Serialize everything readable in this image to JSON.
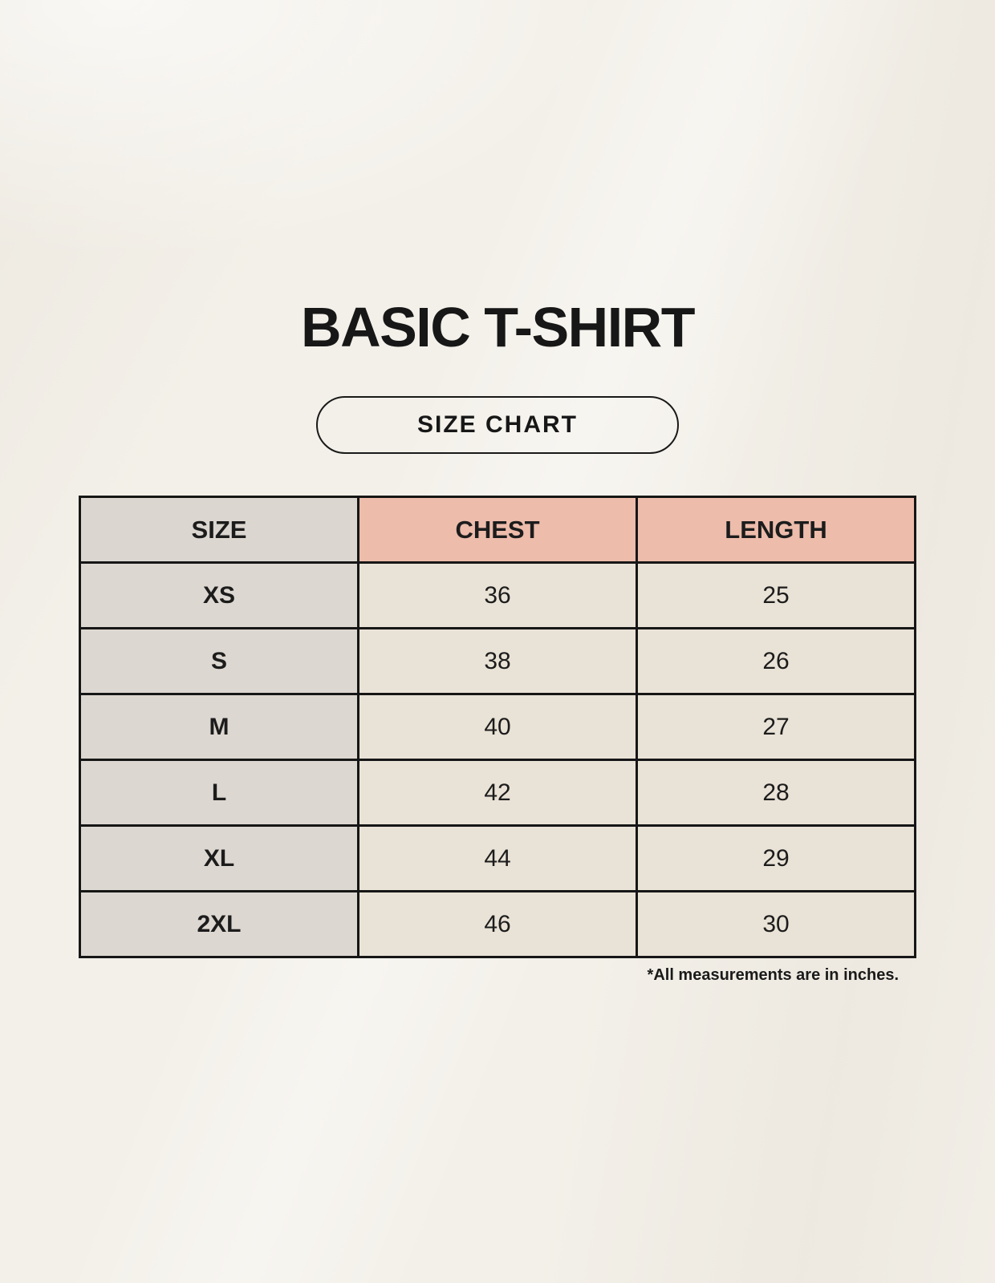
{
  "header": {
    "title": "BASIC T-SHIRT",
    "badge_label": "SIZE CHART"
  },
  "footnote": "*All measurements are in inches.",
  "chart_data": {
    "type": "table",
    "title": "BASIC T-SHIRT",
    "subtitle": "SIZE CHART",
    "columns": [
      "SIZE",
      "CHEST",
      "LENGTH"
    ],
    "rows": [
      {
        "size": "XS",
        "chest": "36",
        "length": "25"
      },
      {
        "size": "S",
        "chest": "38",
        "length": "26"
      },
      {
        "size": "M",
        "chest": "40",
        "length": "27"
      },
      {
        "size": "L",
        "chest": "42",
        "length": "28"
      },
      {
        "size": "XL",
        "chest": "44",
        "length": "29"
      },
      {
        "size": "2XL",
        "chest": "46",
        "length": "30"
      }
    ],
    "units": "inches",
    "note": "*All measurements are in inches.",
    "layout": {
      "legend": "none",
      "grid": "full-borders"
    }
  },
  "colors": {
    "background": "#f3f0e9",
    "table_border": "#161616",
    "size_header_bg": "#dcd6d0",
    "accent_header_bg": "#edbcab",
    "size_cell_bg": "#ddd7d1",
    "data_cell_bg": "#e9e2d6",
    "text": "#1c1c1c"
  }
}
